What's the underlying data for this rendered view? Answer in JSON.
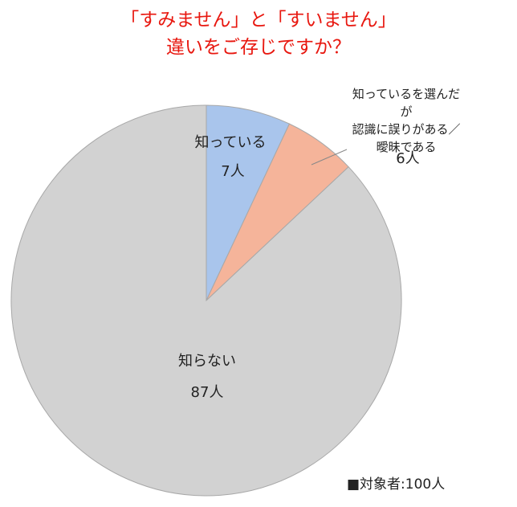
{
  "chart_data": {
    "type": "pie",
    "title": "「すみません」と「すいません」\n違いをご存じですか？",
    "categories": [
      "知っている",
      "知っているを選んだが\n認識に誤りがある／曖昧である",
      "知らない"
    ],
    "values": [
      7,
      6,
      87
    ],
    "value_labels": [
      "7人",
      "6人",
      "87人"
    ],
    "colors": [
      "#a9c5ec",
      "#f5b49a",
      "#d2d2d2"
    ],
    "note": "■対象者:100人"
  }
}
